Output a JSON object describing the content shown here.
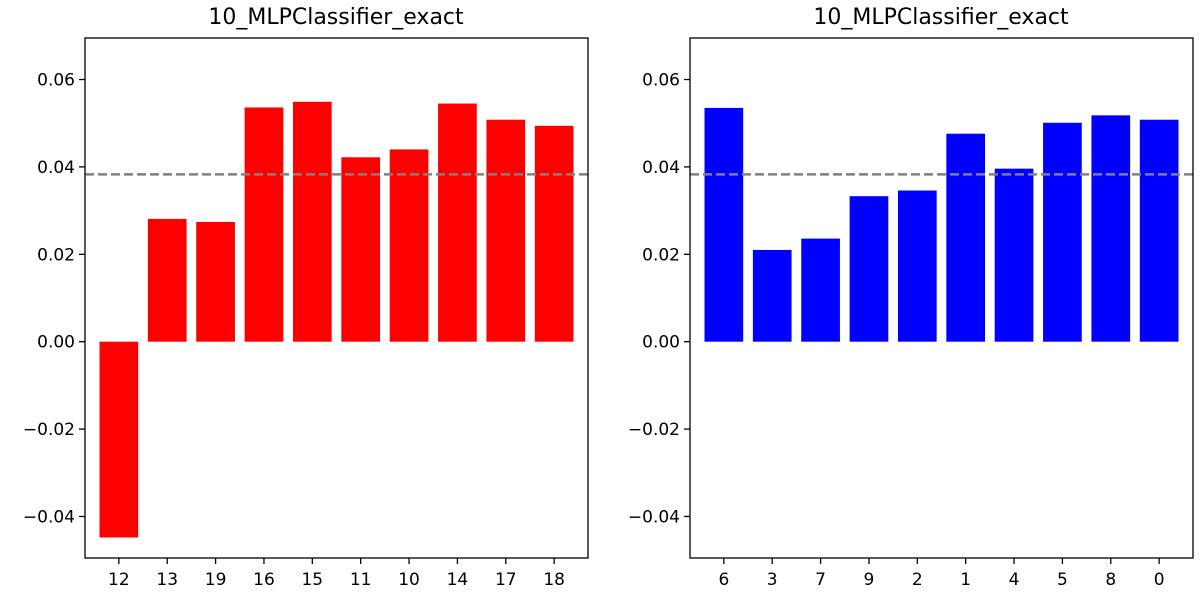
{
  "chart_data": [
    {
      "type": "bar",
      "title": "10_MLPClassifier_exact",
      "xlabel": "",
      "ylabel": "",
      "categories": [
        "12",
        "13",
        "19",
        "16",
        "15",
        "11",
        "10",
        "14",
        "17",
        "18"
      ],
      "values": [
        -0.0448,
        0.0281,
        0.0274,
        0.0536,
        0.0549,
        0.0422,
        0.044,
        0.0545,
        0.0508,
        0.0494
      ],
      "color": "#ff0000",
      "reference_line": 0.0383,
      "reference_line_color": "#808080",
      "ylim": [
        -0.0495,
        0.0695
      ],
      "yticks": [
        -0.04,
        -0.02,
        0.0,
        0.02,
        0.04,
        0.06
      ],
      "ytick_labels": [
        "−0.04",
        "−0.02",
        "0.00",
        "0.02",
        "0.04",
        "0.06"
      ],
      "grid": false,
      "legend": "none"
    },
    {
      "type": "bar",
      "title": "10_MLPClassifier_exact",
      "xlabel": "",
      "ylabel": "",
      "categories": [
        "6",
        "3",
        "7",
        "9",
        "2",
        "1",
        "4",
        "5",
        "8",
        "0"
      ],
      "values": [
        0.0535,
        0.021,
        0.0236,
        0.0333,
        0.0346,
        0.0476,
        0.0396,
        0.0501,
        0.0518,
        0.0508
      ],
      "color": "#0000ff",
      "reference_line": 0.0383,
      "reference_line_color": "#808080",
      "ylim": [
        -0.0495,
        0.0695
      ],
      "yticks": [
        -0.04,
        -0.02,
        0.0,
        0.02,
        0.04,
        0.06
      ],
      "ytick_labels": [
        "−0.04",
        "−0.02",
        "0.00",
        "0.02",
        "0.04",
        "0.06"
      ],
      "grid": false,
      "legend": "none"
    }
  ]
}
